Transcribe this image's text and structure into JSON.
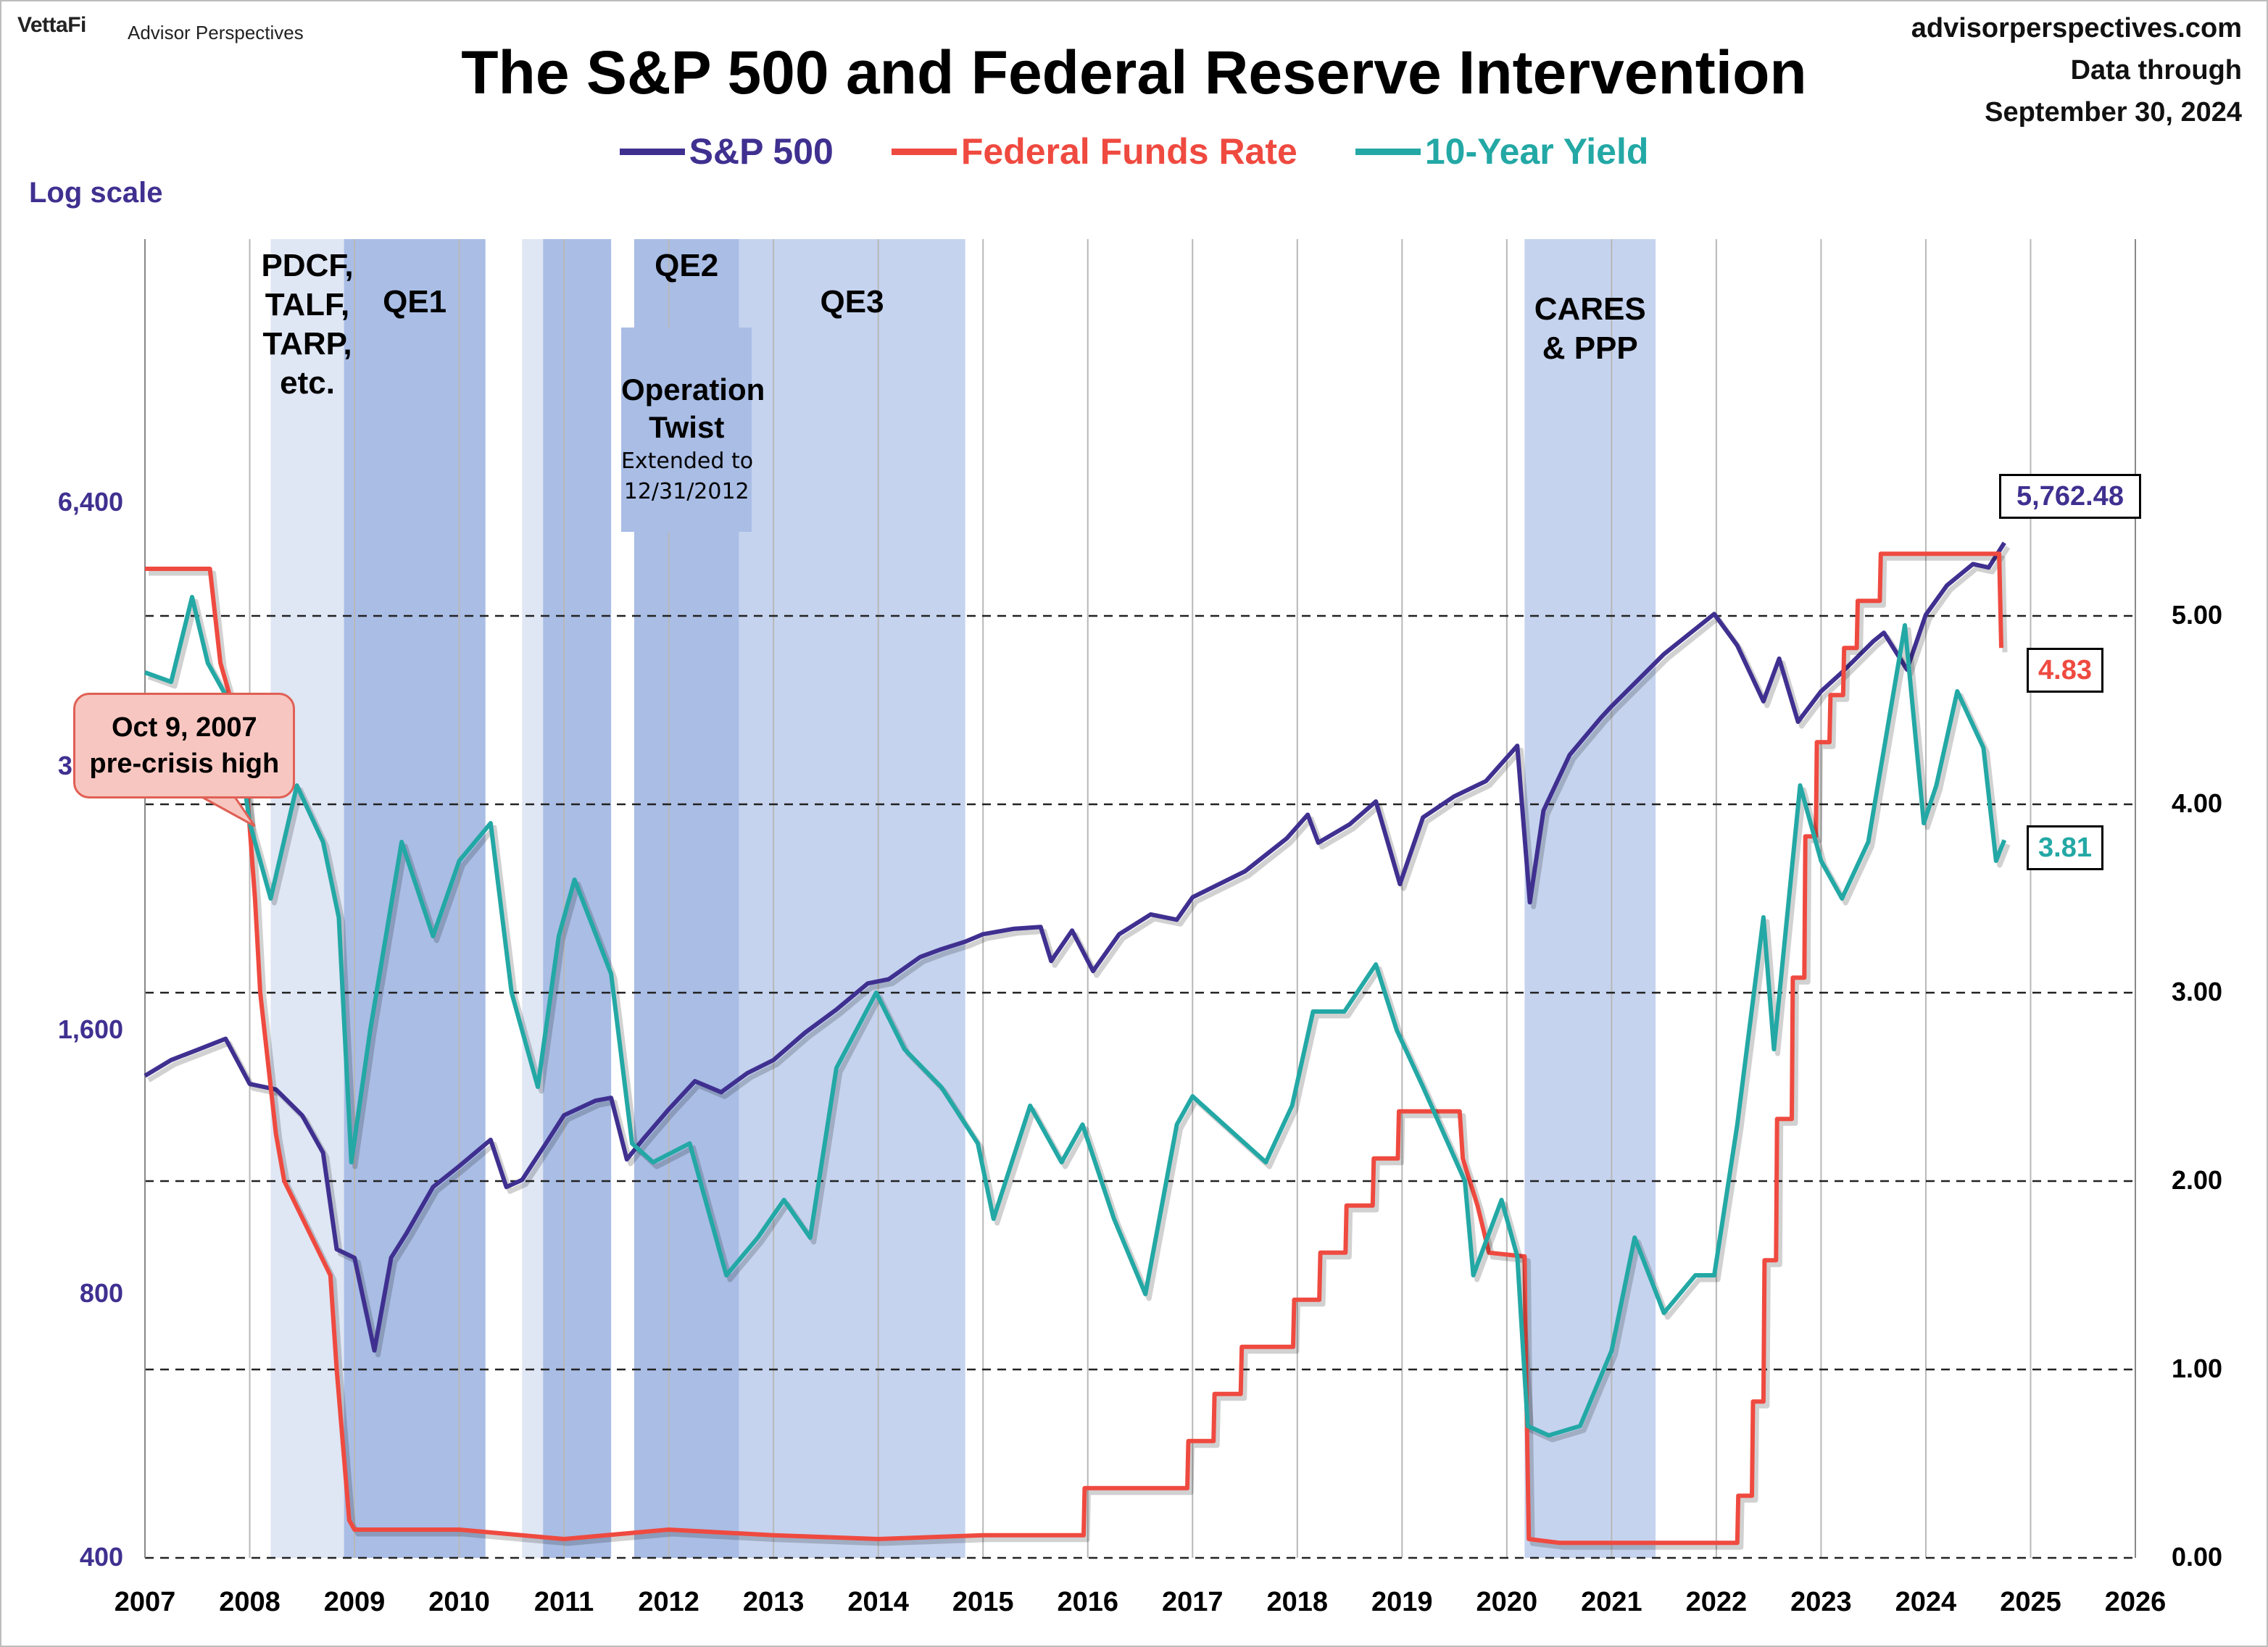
{
  "header": {
    "logo": "VettaFi",
    "logo_sub": "Advisor Perspectives",
    "site": "advisorperspectives.com",
    "data_through_label": "Data through",
    "data_through_date": "September 30, 2024"
  },
  "chart_data": {
    "type": "line",
    "title": "The S&P 500 and Federal Reserve Intervention",
    "left_axis": {
      "label": "Log scale",
      "scale": "log",
      "range": [
        400,
        12800
      ],
      "ticks": [
        "400",
        "800",
        "1,600",
        "3,200",
        "6,400"
      ]
    },
    "right_axis": {
      "scale": "linear",
      "range": [
        0,
        7.0
      ],
      "ticks": [
        "0.00",
        "1.00",
        "2.00",
        "3.00",
        "4.00",
        "5.00"
      ]
    },
    "x_axis": {
      "range": [
        2007,
        2026
      ],
      "ticks": [
        "2007",
        "2008",
        "2009",
        "2010",
        "2011",
        "2012",
        "2013",
        "2014",
        "2015",
        "2016",
        "2017",
        "2018",
        "2019",
        "2020",
        "2021",
        "2022",
        "2023",
        "2024",
        "2025",
        "2026"
      ]
    },
    "legend": [
      "S&P 500",
      "Federal Funds Rate",
      "10-Year Yield"
    ],
    "colors": {
      "sp500": "#3f3090",
      "fed": "#ef4a40",
      "yield": "#23a8a5",
      "shade_light": "#dfe6f4",
      "shade_mid": "#c5d3ee",
      "shade_dark": "#a9bde5"
    },
    "shaded_periods": [
      {
        "start": 2008.2,
        "end": 2008.9,
        "tone": "light",
        "label": "PDCF,\nTALF,\nTARP,\netc."
      },
      {
        "start": 2008.9,
        "end": 2010.25,
        "tone": "dark",
        "label": "QE1"
      },
      {
        "start": 2010.6,
        "end": 2010.8,
        "tone": "light",
        "label": ""
      },
      {
        "start": 2010.8,
        "end": 2011.45,
        "tone": "dark",
        "label": ""
      },
      {
        "start": 2011.67,
        "end": 2012.67,
        "tone": "dark",
        "label": "QE2"
      },
      {
        "start": 2012.67,
        "end": 2014.83,
        "tone": "mid",
        "label": "QE3"
      },
      {
        "start": 2020.17,
        "end": 2021.42,
        "tone": "mid",
        "label": "CARES\n& PPP"
      }
    ],
    "operation_twist": {
      "start": 2011.67,
      "end": 2012.67,
      "title": "Operation\nTwist",
      "note": "Extended to\n12/31/2012"
    },
    "annotation": {
      "x": 2007.77,
      "text": "Oct 9, 2007\npre-crisis high"
    },
    "series": [
      {
        "name": "S&P 500",
        "axis": "left",
        "points": [
          [
            2007.0,
            1420
          ],
          [
            2007.25,
            1480
          ],
          [
            2007.5,
            1520
          ],
          [
            2007.77,
            1565
          ],
          [
            2008.0,
            1390
          ],
          [
            2008.25,
            1370
          ],
          [
            2008.5,
            1280
          ],
          [
            2008.7,
            1160
          ],
          [
            2008.83,
            900
          ],
          [
            2009.0,
            880
          ],
          [
            2009.19,
            690
          ],
          [
            2009.35,
            880
          ],
          [
            2009.5,
            940
          ],
          [
            2009.75,
            1060
          ],
          [
            2010.0,
            1120
          ],
          [
            2010.3,
            1200
          ],
          [
            2010.45,
            1060
          ],
          [
            2010.6,
            1080
          ],
          [
            2010.85,
            1200
          ],
          [
            2011.0,
            1280
          ],
          [
            2011.3,
            1330
          ],
          [
            2011.45,
            1340
          ],
          [
            2011.6,
            1140
          ],
          [
            2011.75,
            1200
          ],
          [
            2012.0,
            1300
          ],
          [
            2012.25,
            1400
          ],
          [
            2012.5,
            1360
          ],
          [
            2012.75,
            1430
          ],
          [
            2013.0,
            1480
          ],
          [
            2013.3,
            1590
          ],
          [
            2013.6,
            1690
          ],
          [
            2013.9,
            1810
          ],
          [
            2014.1,
            1830
          ],
          [
            2014.4,
            1940
          ],
          [
            2014.6,
            1980
          ],
          [
            2014.83,
            2020
          ],
          [
            2015.0,
            2060
          ],
          [
            2015.3,
            2090
          ],
          [
            2015.55,
            2100
          ],
          [
            2015.65,
            1920
          ],
          [
            2015.85,
            2080
          ],
          [
            2016.05,
            1870
          ],
          [
            2016.3,
            2060
          ],
          [
            2016.6,
            2170
          ],
          [
            2016.85,
            2140
          ],
          [
            2017.0,
            2270
          ],
          [
            2017.5,
            2430
          ],
          [
            2017.9,
            2650
          ],
          [
            2018.1,
            2820
          ],
          [
            2018.2,
            2620
          ],
          [
            2018.5,
            2750
          ],
          [
            2018.75,
            2920
          ],
          [
            2018.98,
            2350
          ],
          [
            2019.2,
            2800
          ],
          [
            2019.5,
            2960
          ],
          [
            2019.8,
            3080
          ],
          [
            2020.1,
            3380
          ],
          [
            2020.22,
            2240
          ],
          [
            2020.35,
            2850
          ],
          [
            2020.6,
            3300
          ],
          [
            2020.9,
            3640
          ],
          [
            2021.0,
            3750
          ],
          [
            2021.5,
            4300
          ],
          [
            2021.98,
            4780
          ],
          [
            2022.2,
            4400
          ],
          [
            2022.45,
            3800
          ],
          [
            2022.6,
            4250
          ],
          [
            2022.78,
            3600
          ],
          [
            2023.0,
            3900
          ],
          [
            2023.2,
            4100
          ],
          [
            2023.5,
            4450
          ],
          [
            2023.6,
            4550
          ],
          [
            2023.82,
            4130
          ],
          [
            2024.0,
            4770
          ],
          [
            2024.2,
            5150
          ],
          [
            2024.45,
            5450
          ],
          [
            2024.6,
            5400
          ],
          [
            2024.75,
            5762
          ]
        ]
      },
      {
        "name": "Federal Funds Rate",
        "axis": "right",
        "points": [
          [
            2007.0,
            5.25
          ],
          [
            2007.62,
            5.25
          ],
          [
            2007.72,
            4.75
          ],
          [
            2007.85,
            4.5
          ],
          [
            2007.95,
            4.25
          ],
          [
            2008.05,
            3.5
          ],
          [
            2008.1,
            3.0
          ],
          [
            2008.25,
            2.25
          ],
          [
            2008.33,
            2.0
          ],
          [
            2008.77,
            1.5
          ],
          [
            2008.83,
            1.0
          ],
          [
            2008.95,
            0.2
          ],
          [
            2009.0,
            0.15
          ],
          [
            2010.0,
            0.15
          ],
          [
            2011.0,
            0.1
          ],
          [
            2012.0,
            0.15
          ],
          [
            2013.0,
            0.12
          ],
          [
            2014.0,
            0.1
          ],
          [
            2015.0,
            0.12
          ],
          [
            2015.96,
            0.12
          ],
          [
            2015.97,
            0.37
          ],
          [
            2016.95,
            0.37
          ],
          [
            2016.96,
            0.62
          ],
          [
            2017.2,
            0.62
          ],
          [
            2017.21,
            0.87
          ],
          [
            2017.46,
            0.87
          ],
          [
            2017.47,
            1.12
          ],
          [
            2017.96,
            1.12
          ],
          [
            2017.97,
            1.37
          ],
          [
            2018.21,
            1.37
          ],
          [
            2018.22,
            1.62
          ],
          [
            2018.46,
            1.62
          ],
          [
            2018.47,
            1.87
          ],
          [
            2018.72,
            1.87
          ],
          [
            2018.73,
            2.12
          ],
          [
            2018.96,
            2.12
          ],
          [
            2018.97,
            2.37
          ],
          [
            2019.55,
            2.37
          ],
          [
            2019.58,
            2.12
          ],
          [
            2019.72,
            1.87
          ],
          [
            2019.83,
            1.62
          ],
          [
            2020.17,
            1.6
          ],
          [
            2020.18,
            1.1
          ],
          [
            2020.21,
            0.1
          ],
          [
            2020.5,
            0.08
          ],
          [
            2021.0,
            0.08
          ],
          [
            2022.0,
            0.08
          ],
          [
            2022.2,
            0.08
          ],
          [
            2022.21,
            0.33
          ],
          [
            2022.34,
            0.33
          ],
          [
            2022.35,
            0.83
          ],
          [
            2022.45,
            0.83
          ],
          [
            2022.46,
            1.58
          ],
          [
            2022.57,
            1.58
          ],
          [
            2022.58,
            2.33
          ],
          [
            2022.72,
            2.33
          ],
          [
            2022.73,
            3.08
          ],
          [
            2022.84,
            3.08
          ],
          [
            2022.85,
            3.83
          ],
          [
            2022.95,
            3.83
          ],
          [
            2022.96,
            4.33
          ],
          [
            2023.08,
            4.33
          ],
          [
            2023.09,
            4.58
          ],
          [
            2023.21,
            4.58
          ],
          [
            2023.22,
            4.83
          ],
          [
            2023.34,
            4.83
          ],
          [
            2023.35,
            5.08
          ],
          [
            2023.56,
            5.08
          ],
          [
            2023.57,
            5.33
          ],
          [
            2024.7,
            5.33
          ],
          [
            2024.72,
            4.83
          ]
        ]
      },
      {
        "name": "10-Year Yield",
        "axis": "right",
        "points": [
          [
            2007.0,
            4.7
          ],
          [
            2007.25,
            4.65
          ],
          [
            2007.45,
            5.1
          ],
          [
            2007.6,
            4.75
          ],
          [
            2007.85,
            4.5
          ],
          [
            2008.0,
            3.9
          ],
          [
            2008.2,
            3.5
          ],
          [
            2008.45,
            4.1
          ],
          [
            2008.7,
            3.8
          ],
          [
            2008.85,
            3.4
          ],
          [
            2008.97,
            2.1
          ],
          [
            2009.15,
            2.8
          ],
          [
            2009.45,
            3.8
          ],
          [
            2009.75,
            3.3
          ],
          [
            2010.0,
            3.7
          ],
          [
            2010.3,
            3.9
          ],
          [
            2010.5,
            3.0
          ],
          [
            2010.75,
            2.5
          ],
          [
            2010.95,
            3.3
          ],
          [
            2011.1,
            3.6
          ],
          [
            2011.45,
            3.1
          ],
          [
            2011.65,
            2.2
          ],
          [
            2011.85,
            2.1
          ],
          [
            2012.2,
            2.2
          ],
          [
            2012.55,
            1.5
          ],
          [
            2012.85,
            1.7
          ],
          [
            2013.1,
            1.9
          ],
          [
            2013.35,
            1.7
          ],
          [
            2013.6,
            2.6
          ],
          [
            2013.98,
            3.0
          ],
          [
            2014.25,
            2.7
          ],
          [
            2014.6,
            2.5
          ],
          [
            2014.95,
            2.2
          ],
          [
            2015.1,
            1.8
          ],
          [
            2015.45,
            2.4
          ],
          [
            2015.75,
            2.1
          ],
          [
            2015.95,
            2.3
          ],
          [
            2016.25,
            1.8
          ],
          [
            2016.55,
            1.4
          ],
          [
            2016.85,
            2.3
          ],
          [
            2017.0,
            2.45
          ],
          [
            2017.3,
            2.3
          ],
          [
            2017.7,
            2.1
          ],
          [
            2017.95,
            2.4
          ],
          [
            2018.15,
            2.9
          ],
          [
            2018.45,
            2.9
          ],
          [
            2018.75,
            3.15
          ],
          [
            2018.95,
            2.8
          ],
          [
            2019.2,
            2.5
          ],
          [
            2019.6,
            2.0
          ],
          [
            2019.68,
            1.5
          ],
          [
            2019.95,
            1.9
          ],
          [
            2020.1,
            1.6
          ],
          [
            2020.2,
            0.7
          ],
          [
            2020.4,
            0.65
          ],
          [
            2020.7,
            0.7
          ],
          [
            2021.0,
            1.1
          ],
          [
            2021.22,
            1.7
          ],
          [
            2021.5,
            1.3
          ],
          [
            2021.8,
            1.5
          ],
          [
            2021.98,
            1.5
          ],
          [
            2022.2,
            2.3
          ],
          [
            2022.45,
            3.4
          ],
          [
            2022.55,
            2.7
          ],
          [
            2022.8,
            4.1
          ],
          [
            2023.0,
            3.7
          ],
          [
            2023.2,
            3.5
          ],
          [
            2023.45,
            3.8
          ],
          [
            2023.8,
            4.95
          ],
          [
            2023.98,
            3.9
          ],
          [
            2024.1,
            4.1
          ],
          [
            2024.3,
            4.6
          ],
          [
            2024.55,
            4.3
          ],
          [
            2024.67,
            3.7
          ],
          [
            2024.75,
            3.81
          ]
        ]
      }
    ],
    "end_values": {
      "sp500": "5,762.48",
      "fed": "4.83",
      "yield": "3.81"
    }
  }
}
